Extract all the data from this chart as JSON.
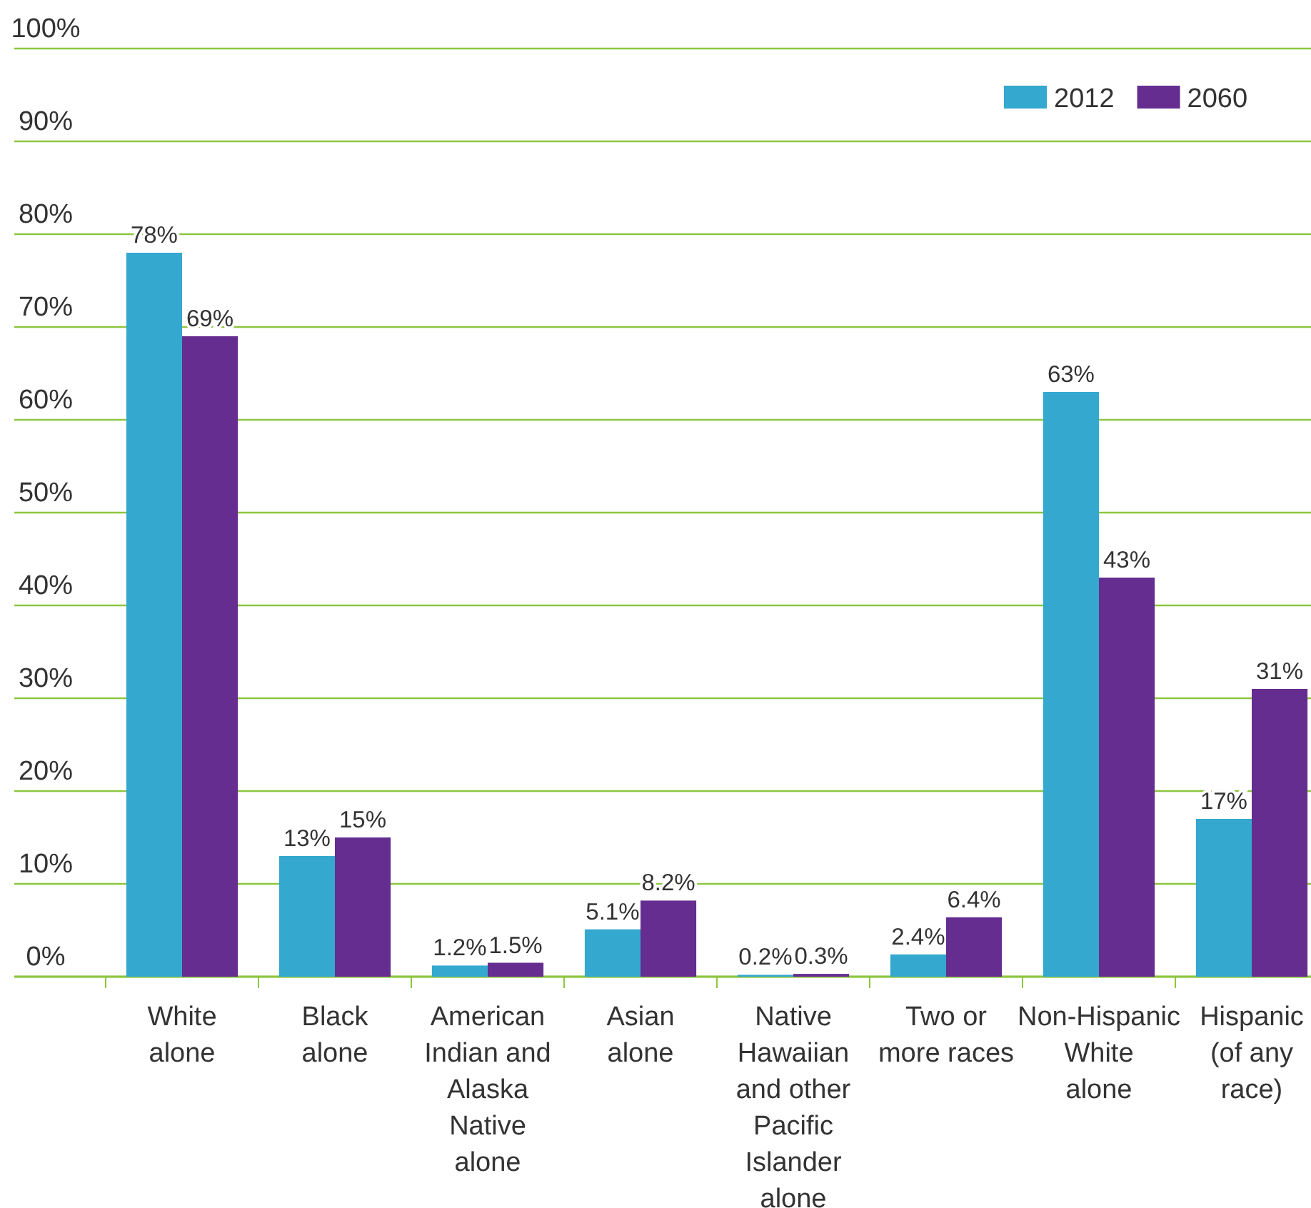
{
  "chart_data": {
    "type": "bar",
    "categories": [
      "White alone",
      "Black alone",
      "American Indian and Alaska Native alone",
      "Asian alone",
      "Native Hawaiian and other Pacific Islander alone",
      "Two or more races",
      "Non-Hispanic White alone",
      "Hispanic (of any race)"
    ],
    "series": [
      {
        "name": "2012",
        "color": "#34a8cf",
        "values": [
          78,
          13,
          1.2,
          5.1,
          0.2,
          2.4,
          63,
          17
        ],
        "value_labels": [
          "78%",
          "13%",
          "1.2%",
          "5.1%",
          "0.2%",
          "2.4%",
          "63%",
          "17%"
        ]
      },
      {
        "name": "2060",
        "color": "#652d90",
        "values": [
          69,
          15,
          1.5,
          8.2,
          0.3,
          6.4,
          43,
          31
        ],
        "value_labels": [
          "69%",
          "15%",
          "1.5%",
          "8.2%",
          "0.3%",
          "6.4%",
          "43%",
          "31%"
        ]
      }
    ],
    "ylim": [
      0,
      100
    ],
    "yticks": [
      {
        "value": 0,
        "label": "0%"
      },
      {
        "value": 10,
        "label": "10%"
      },
      {
        "value": 20,
        "label": "20%"
      },
      {
        "value": 30,
        "label": "30%"
      },
      {
        "value": 40,
        "label": "40%"
      },
      {
        "value": 50,
        "label": "50%"
      },
      {
        "value": 60,
        "label": "60%"
      },
      {
        "value": 70,
        "label": "70%"
      },
      {
        "value": 80,
        "label": "80%"
      },
      {
        "value": 90,
        "label": "90%"
      },
      {
        "value": 100,
        "label": "100%"
      }
    ],
    "grid": "y",
    "legend": "top right"
  }
}
